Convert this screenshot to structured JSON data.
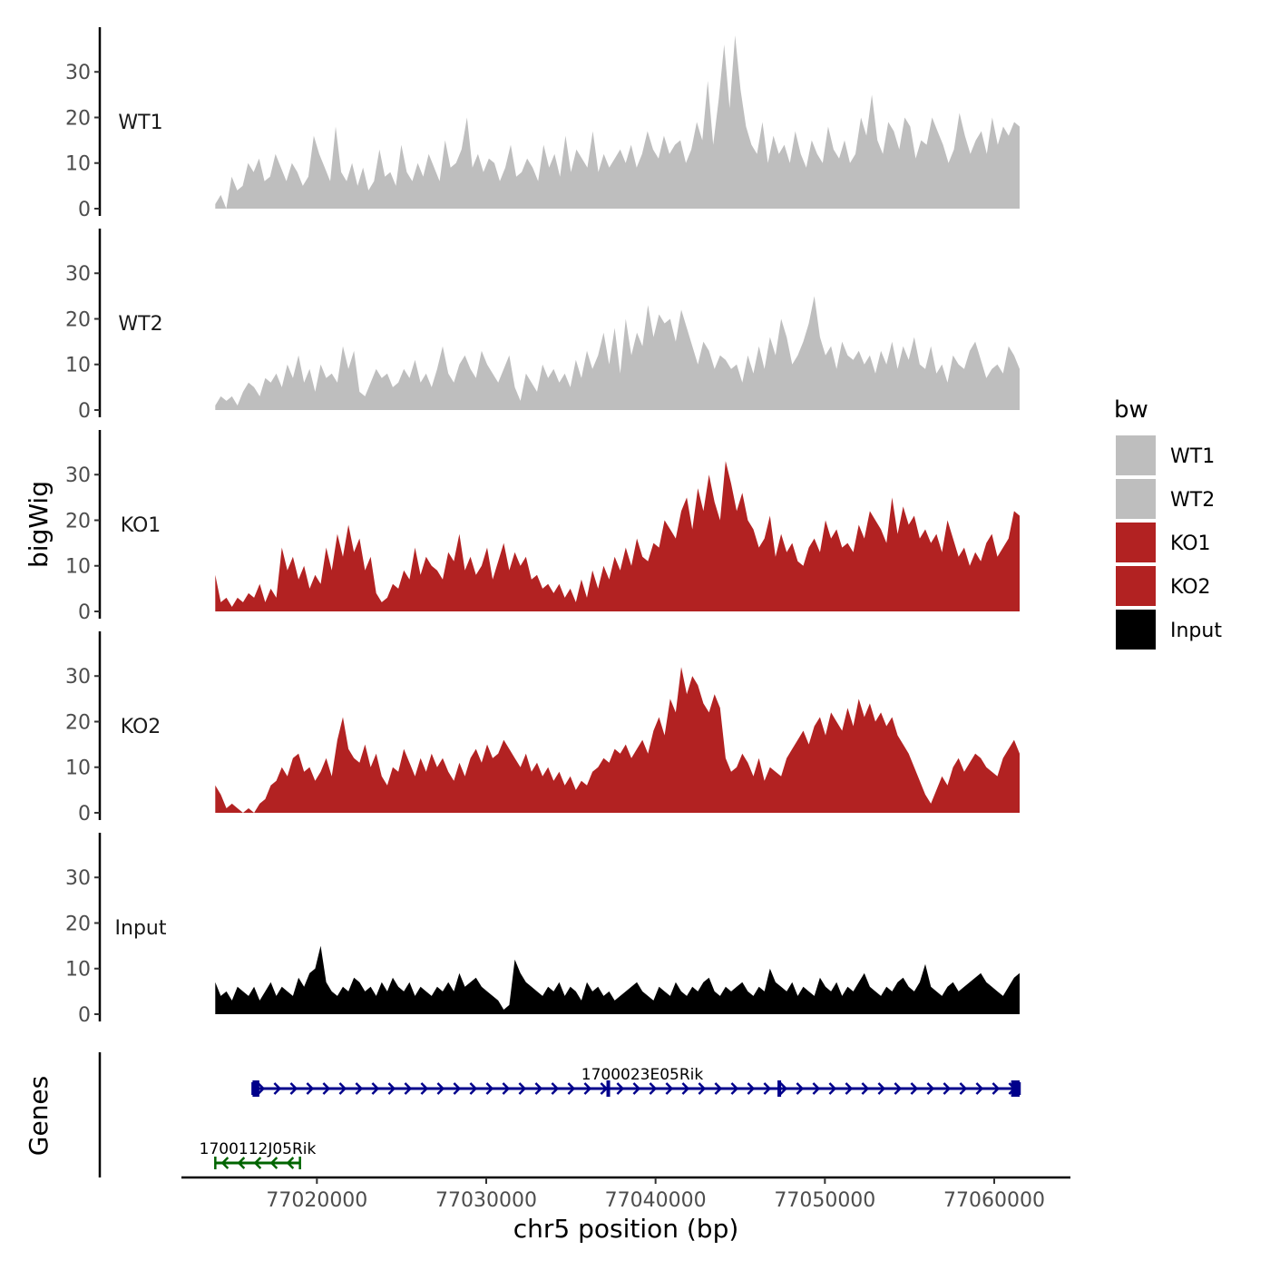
{
  "chart_data": {
    "type": "area",
    "ylabel": "bigWig",
    "xlabel": "chr5 position (bp)",
    "xlim": [
      77012000,
      77064500
    ],
    "ylim": [
      0,
      39
    ],
    "y_ticks": [
      0,
      10,
      20,
      30
    ],
    "x_ticks": [
      77020000,
      77030000,
      77040000,
      77050000,
      77060000
    ],
    "x_tick_labels": [
      "77020000",
      "77030000",
      "77040000",
      "77050000",
      "77060000"
    ],
    "y_tick_labels": [
      "0",
      "10",
      "20",
      "30"
    ],
    "genes_label": "Genes",
    "legend": {
      "title": "bw",
      "position": "right",
      "entries": [
        {
          "label": "WT1",
          "color": "#bebebe"
        },
        {
          "label": "WT2",
          "color": "#bebebe"
        },
        {
          "label": "KO1",
          "color": "#b22222"
        },
        {
          "label": "KO2",
          "color": "#b22222"
        },
        {
          "label": "Input",
          "color": "#000000"
        }
      ]
    },
    "series": [
      {
        "name": "WT1",
        "color": "#bebebe",
        "x_start": 77014000,
        "x_end": 77061500,
        "values": [
          1,
          3,
          0,
          7,
          4,
          5,
          10,
          8,
          11,
          6,
          7,
          12,
          9,
          6,
          10,
          8,
          5,
          7,
          16,
          12,
          9,
          6,
          18,
          8,
          6,
          10,
          5,
          9,
          4,
          6,
          13,
          7,
          8,
          5,
          14,
          8,
          6,
          10,
          7,
          12,
          9,
          6,
          15,
          9,
          10,
          13,
          20,
          9,
          12,
          8,
          11,
          10,
          6,
          9,
          14,
          7,
          8,
          11,
          9,
          6,
          14,
          9,
          12,
          7,
          16,
          8,
          13,
          11,
          9,
          17,
          8,
          12,
          9,
          11,
          13,
          10,
          14,
          9,
          12,
          17,
          13,
          11,
          16,
          12,
          14,
          15,
          10,
          13,
          19,
          15,
          28,
          14,
          24,
          36,
          22,
          38,
          26,
          18,
          14,
          12,
          19,
          10,
          16,
          12,
          14,
          10,
          17,
          12,
          9,
          15,
          12,
          10,
          18,
          13,
          11,
          15,
          10,
          12,
          20,
          16,
          25,
          15,
          12,
          19,
          17,
          13,
          20,
          18,
          11,
          15,
          14,
          20,
          17,
          14,
          10,
          13,
          21,
          16,
          12,
          15,
          17,
          12,
          20,
          14,
          18,
          16,
          19,
          18
        ]
      },
      {
        "name": "WT2",
        "color": "#bebebe",
        "x_start": 77014000,
        "x_end": 77061500,
        "values": [
          1,
          3,
          2,
          3,
          1,
          4,
          6,
          5,
          3,
          7,
          6,
          8,
          5,
          10,
          7,
          12,
          6,
          9,
          4,
          10,
          7,
          8,
          6,
          14,
          9,
          13,
          4,
          3,
          6,
          9,
          7,
          8,
          5,
          6,
          9,
          7,
          11,
          6,
          8,
          5,
          9,
          14,
          8,
          6,
          10,
          12,
          9,
          7,
          13,
          10,
          8,
          6,
          9,
          12,
          5,
          2,
          8,
          6,
          4,
          10,
          7,
          9,
          6,
          8,
          5,
          11,
          7,
          13,
          9,
          12,
          17,
          10,
          18,
          8,
          20,
          12,
          17,
          14,
          23,
          16,
          21,
          19,
          20,
          15,
          22,
          18,
          14,
          10,
          15,
          13,
          9,
          12,
          11,
          9,
          10,
          6,
          12,
          8,
          14,
          9,
          16,
          12,
          20,
          16,
          10,
          12,
          15,
          19,
          25,
          16,
          12,
          14,
          9,
          15,
          12,
          11,
          13,
          10,
          12,
          8,
          13,
          10,
          15,
          9,
          14,
          11,
          16,
          10,
          9,
          14,
          8,
          10,
          6,
          12,
          10,
          9,
          13,
          15,
          11,
          7,
          9,
          10,
          8,
          14,
          12,
          9
        ]
      },
      {
        "name": "KO1",
        "color": "#b22222",
        "x_start": 77014000,
        "x_end": 77061500,
        "values": [
          8,
          2,
          3,
          1,
          3,
          2,
          4,
          3,
          6,
          2,
          5,
          3,
          14,
          9,
          12,
          7,
          10,
          5,
          8,
          6,
          14,
          9,
          17,
          12,
          19,
          13,
          16,
          9,
          12,
          4,
          2,
          3,
          6,
          5,
          9,
          7,
          14,
          8,
          12,
          10,
          9,
          7,
          13,
          11,
          17,
          9,
          12,
          8,
          10,
          14,
          7,
          11,
          15,
          9,
          13,
          10,
          12,
          7,
          8,
          5,
          6,
          4,
          6,
          3,
          5,
          2,
          7,
          3,
          9,
          5,
          10,
          7,
          12,
          9,
          14,
          10,
          16,
          12,
          11,
          15,
          14,
          20,
          18,
          16,
          22,
          25,
          18,
          27,
          22,
          30,
          24,
          20,
          33,
          28,
          22,
          26,
          20,
          18,
          14,
          16,
          21,
          12,
          17,
          13,
          15,
          11,
          10,
          14,
          16,
          13,
          20,
          16,
          18,
          14,
          15,
          13,
          19,
          16,
          22,
          20,
          18,
          15,
          25,
          17,
          23,
          19,
          21,
          16,
          18,
          15,
          17,
          13,
          20,
          16,
          12,
          14,
          10,
          13,
          11,
          15,
          17,
          12,
          14,
          16,
          22,
          21
        ]
      },
      {
        "name": "KO2",
        "color": "#b22222",
        "x_start": 77014000,
        "x_end": 77061500,
        "values": [
          6,
          4,
          1,
          2,
          1,
          0,
          1,
          0,
          2,
          3,
          6,
          7,
          10,
          8,
          12,
          13,
          9,
          10,
          7,
          9,
          12,
          8,
          16,
          21,
          14,
          12,
          11,
          15,
          10,
          13,
          8,
          6,
          10,
          9,
          14,
          11,
          8,
          12,
          9,
          13,
          10,
          12,
          9,
          7,
          11,
          8,
          12,
          14,
          11,
          15,
          12,
          13,
          16,
          14,
          12,
          10,
          13,
          9,
          11,
          8,
          10,
          7,
          9,
          6,
          8,
          5,
          7,
          6,
          9,
          10,
          12,
          11,
          14,
          13,
          15,
          12,
          14,
          16,
          13,
          18,
          21,
          17,
          25,
          22,
          32,
          26,
          30,
          28,
          24,
          22,
          26,
          23,
          12,
          9,
          10,
          13,
          11,
          8,
          12,
          7,
          10,
          9,
          8,
          12,
          14,
          16,
          18,
          15,
          19,
          21,
          17,
          22,
          20,
          18,
          23,
          19,
          25,
          21,
          24,
          20,
          22,
          19,
          21,
          17,
          15,
          13,
          10,
          7,
          4,
          2,
          5,
          8,
          6,
          10,
          12,
          9,
          11,
          13,
          12,
          10,
          9,
          8,
          12,
          14,
          16,
          13
        ]
      },
      {
        "name": "Input",
        "color": "#000000",
        "x_start": 77014000,
        "x_end": 77061500,
        "values": [
          7,
          4,
          5,
          3,
          6,
          5,
          4,
          6,
          3,
          5,
          7,
          4,
          6,
          5,
          4,
          8,
          6,
          9,
          10,
          15,
          7,
          5,
          4,
          6,
          5,
          8,
          7,
          5,
          6,
          4,
          7,
          5,
          8,
          6,
          5,
          7,
          4,
          6,
          5,
          4,
          6,
          5,
          7,
          5,
          9,
          6,
          7,
          8,
          6,
          5,
          4,
          3,
          1,
          2,
          12,
          9,
          7,
          6,
          5,
          4,
          6,
          5,
          7,
          4,
          6,
          5,
          3,
          7,
          5,
          6,
          4,
          5,
          3,
          4,
          5,
          6,
          7,
          5,
          4,
          3,
          6,
          5,
          4,
          7,
          5,
          4,
          6,
          5,
          7,
          8,
          5,
          4,
          6,
          5,
          6,
          7,
          5,
          4,
          6,
          5,
          10,
          7,
          6,
          5,
          7,
          4,
          6,
          5,
          4,
          8,
          6,
          5,
          7,
          4,
          6,
          5,
          7,
          9,
          6,
          5,
          4,
          6,
          5,
          7,
          8,
          6,
          5,
          7,
          11,
          6,
          5,
          4,
          6,
          7,
          5,
          6,
          7,
          8,
          9,
          7,
          6,
          5,
          4,
          6,
          8,
          9
        ]
      }
    ],
    "genes": [
      {
        "name": "1700023E05Rik",
        "strand": "+",
        "color": "#00008b",
        "start": 77016200,
        "end": 77061500,
        "exons": [
          [
            77016200,
            77016600
          ],
          [
            77037100,
            77037300
          ],
          [
            77047200,
            77047400
          ],
          [
            77061000,
            77061500
          ]
        ]
      },
      {
        "name": "1700112J05Rik",
        "strand": "-",
        "color": "#006400",
        "start": 77014000,
        "end": 77019000,
        "exons": []
      }
    ]
  }
}
